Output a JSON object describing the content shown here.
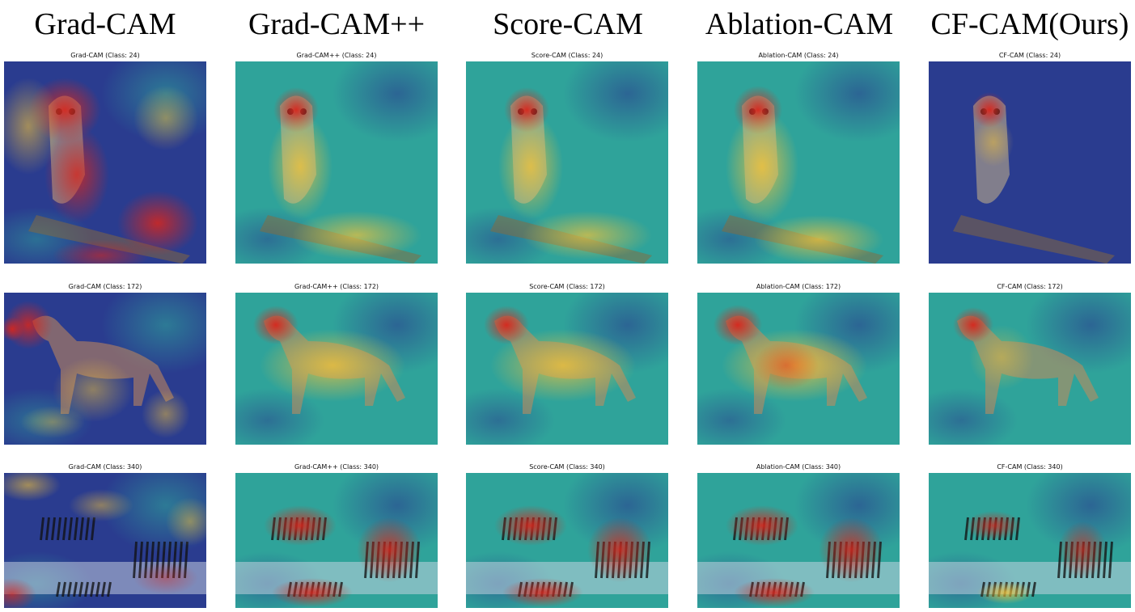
{
  "columns": [
    {
      "title": "Grad-CAM"
    },
    {
      "title": "Grad-CAM++"
    },
    {
      "title": "Score-CAM"
    },
    {
      "title": "Ablation-CAM"
    },
    {
      "title": "CF-CAM(Ours)"
    }
  ],
  "rows": [
    {
      "subject": "owl",
      "captions": [
        "Grad-CAM (Class: 24)",
        "Grad-CAM++ (Class: 24)",
        "Score-CAM (Class: 24)",
        "Ablation-CAM (Class: 24)",
        "CF-CAM (Class: 24)"
      ]
    },
    {
      "subject": "dog",
      "captions": [
        "Grad-CAM (Class: 172)",
        "Grad-CAM++ (Class: 172)",
        "Score-CAM (Class: 172)",
        "Ablation-CAM (Class: 172)",
        "CF-CAM (Class: 172)"
      ]
    },
    {
      "subject": "zebras",
      "captions": [
        "Grad-CAM (Class: 340)",
        "Grad-CAM++ (Class: 340)",
        "Score-CAM (Class: 340)",
        "Ablation-CAM (Class: 340)",
        "CF-CAM (Class: 340)"
      ]
    }
  ],
  "colors": {
    "cool": "#2a3c8f",
    "teal": "#2fa39a",
    "hot": "#d8261c",
    "warm": "#f2c23a"
  }
}
